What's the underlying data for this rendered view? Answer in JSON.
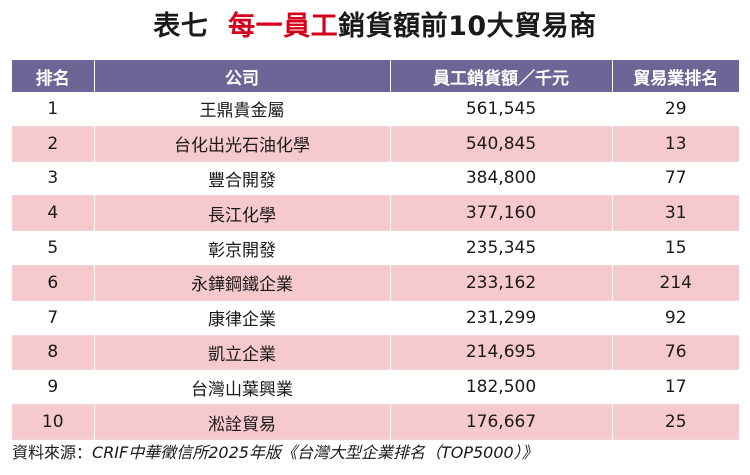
{
  "title": {
    "prefix": "表七",
    "highlight": "每一員工",
    "suffix": "銷貨額前10大貿易商"
  },
  "table": {
    "headers": [
      "排名",
      "公司",
      "員工銷貨額／千元",
      "貿易業排名"
    ],
    "rows": [
      [
        "1",
        "王鼎貴金屬",
        "561,545",
        "29"
      ],
      [
        "2",
        "台化出光石油化學",
        "540,845",
        "13"
      ],
      [
        "3",
        "豐合開發",
        "384,800",
        "77"
      ],
      [
        "4",
        "長江化學",
        "377,160",
        "31"
      ],
      [
        "5",
        "彰京開發",
        "235,345",
        "15"
      ],
      [
        "6",
        "永鏵鋼鐵企業",
        "233,162",
        "214"
      ],
      [
        "7",
        "康律企業",
        "231,299",
        "92"
      ],
      [
        "8",
        "凱立企業",
        "214,695",
        "76"
      ],
      [
        "9",
        "台灣山葉興業",
        "182,500",
        "17"
      ],
      [
        "10",
        "淞詮貿易",
        "176,667",
        "25"
      ]
    ]
  },
  "source": {
    "label": "資料來源：",
    "text": "CRIF中華徵信所2025年版《台灣大型企業排名（TOP5000）》"
  },
  "colors": {
    "header_bg": "#6f6496",
    "row_alt_bg": "#f6c9cc",
    "title_highlight": "#d6001c"
  }
}
